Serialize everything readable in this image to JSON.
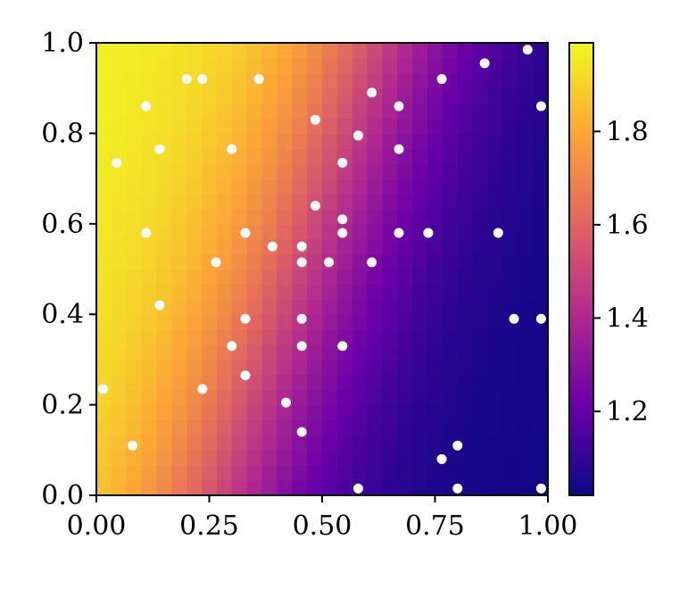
{
  "chart_data": {
    "type": "heatmap",
    "title": "",
    "xlabel": "",
    "ylabel": "",
    "xlim": [
      0,
      1
    ],
    "ylim": [
      0,
      1
    ],
    "grid": false,
    "colormap": "plasma",
    "colormap_stops": [
      "#0d0887",
      "#6a00a8",
      "#b12a90",
      "#e16462",
      "#fca636",
      "#f0f921"
    ],
    "heatmap": {
      "resolution": 30,
      "value_range": [
        1.0,
        2.0
      ],
      "description_values": {
        "top_left": 2.0,
        "bottom_right": 1.0
      }
    },
    "x_ticks": [
      {
        "value": 0.0,
        "label": "0.00"
      },
      {
        "value": 0.25,
        "label": "0.25"
      },
      {
        "value": 0.5,
        "label": "0.50"
      },
      {
        "value": 0.75,
        "label": "0.75"
      },
      {
        "value": 1.0,
        "label": "1.00"
      }
    ],
    "y_ticks": [
      {
        "value": 0.0,
        "label": "0.0"
      },
      {
        "value": 0.2,
        "label": "0.2"
      },
      {
        "value": 0.4,
        "label": "0.4"
      },
      {
        "value": 0.6,
        "label": "0.6"
      },
      {
        "value": 0.8,
        "label": "0.8"
      },
      {
        "value": 1.0,
        "label": "1.0"
      }
    ],
    "colorbar": {
      "range": [
        1.02,
        1.99
      ],
      "ticks": [
        {
          "value": 1.2,
          "label": "1.2"
        },
        {
          "value": 1.4,
          "label": "1.4"
        },
        {
          "value": 1.6,
          "label": "1.6"
        },
        {
          "value": 1.8,
          "label": "1.8"
        }
      ]
    },
    "points": [
      {
        "x": 0.955,
        "y": 0.985
      },
      {
        "x": 0.86,
        "y": 0.955
      },
      {
        "x": 0.2,
        "y": 0.92
      },
      {
        "x": 0.235,
        "y": 0.92
      },
      {
        "x": 0.36,
        "y": 0.92
      },
      {
        "x": 0.765,
        "y": 0.92
      },
      {
        "x": 0.61,
        "y": 0.89
      },
      {
        "x": 0.11,
        "y": 0.86
      },
      {
        "x": 0.67,
        "y": 0.86
      },
      {
        "x": 0.985,
        "y": 0.86
      },
      {
        "x": 0.485,
        "y": 0.83
      },
      {
        "x": 0.58,
        "y": 0.795
      },
      {
        "x": 0.14,
        "y": 0.765
      },
      {
        "x": 0.3,
        "y": 0.765
      },
      {
        "x": 0.67,
        "y": 0.765
      },
      {
        "x": 0.045,
        "y": 0.735
      },
      {
        "x": 0.545,
        "y": 0.735
      },
      {
        "x": 0.485,
        "y": 0.64
      },
      {
        "x": 0.545,
        "y": 0.61
      },
      {
        "x": 0.11,
        "y": 0.58
      },
      {
        "x": 0.33,
        "y": 0.58
      },
      {
        "x": 0.545,
        "y": 0.58
      },
      {
        "x": 0.67,
        "y": 0.58
      },
      {
        "x": 0.735,
        "y": 0.58
      },
      {
        "x": 0.89,
        "y": 0.58
      },
      {
        "x": 0.39,
        "y": 0.55
      },
      {
        "x": 0.455,
        "y": 0.55
      },
      {
        "x": 0.265,
        "y": 0.515
      },
      {
        "x": 0.455,
        "y": 0.515
      },
      {
        "x": 0.515,
        "y": 0.515
      },
      {
        "x": 0.61,
        "y": 0.515
      },
      {
        "x": 0.14,
        "y": 0.42
      },
      {
        "x": 0.33,
        "y": 0.39
      },
      {
        "x": 0.455,
        "y": 0.39
      },
      {
        "x": 0.925,
        "y": 0.39
      },
      {
        "x": 0.985,
        "y": 0.39
      },
      {
        "x": 0.3,
        "y": 0.33
      },
      {
        "x": 0.455,
        "y": 0.33
      },
      {
        "x": 0.545,
        "y": 0.33
      },
      {
        "x": 0.33,
        "y": 0.265
      },
      {
        "x": 0.015,
        "y": 0.235
      },
      {
        "x": 0.235,
        "y": 0.235
      },
      {
        "x": 0.42,
        "y": 0.205
      },
      {
        "x": 0.455,
        "y": 0.14
      },
      {
        "x": 0.08,
        "y": 0.11
      },
      {
        "x": 0.8,
        "y": 0.11
      },
      {
        "x": 0.765,
        "y": 0.08
      },
      {
        "x": 0.58,
        "y": 0.015
      },
      {
        "x": 0.8,
        "y": 0.015
      },
      {
        "x": 0.985,
        "y": 0.015
      }
    ]
  }
}
